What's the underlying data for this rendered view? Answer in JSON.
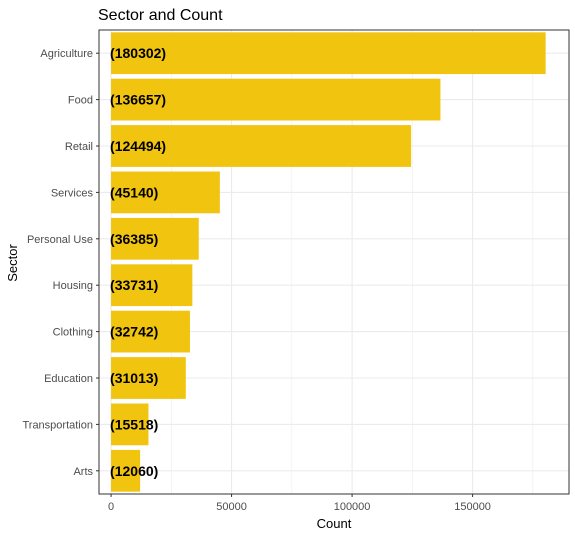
{
  "chart_data": {
    "type": "bar",
    "orientation": "horizontal",
    "title": "Sector and Count",
    "xlabel": "Count",
    "ylabel": "Sector",
    "categories": [
      "Agriculture",
      "Food",
      "Retail",
      "Services",
      "Personal Use",
      "Housing",
      "Clothing",
      "Education",
      "Transportation",
      "Arts"
    ],
    "values": [
      180302,
      136657,
      124494,
      45140,
      36385,
      33731,
      32742,
      31013,
      15518,
      12060
    ],
    "data_labels": [
      "(180302)",
      "(136657)",
      "(124494)",
      "(45140)",
      "(36385)",
      "(33731)",
      "(32742)",
      "(31013)",
      "(15518)",
      "(12060)"
    ],
    "xlim": [
      -5000,
      190000
    ],
    "xticks": [
      0,
      50000,
      100000,
      150000
    ],
    "xtick_labels": [
      "0",
      "50000",
      "100000",
      "150000"
    ],
    "grid": true,
    "bar_color": "#F1C40F",
    "grid_color": "#EBEBEB",
    "panel_border_color": "#333333"
  }
}
